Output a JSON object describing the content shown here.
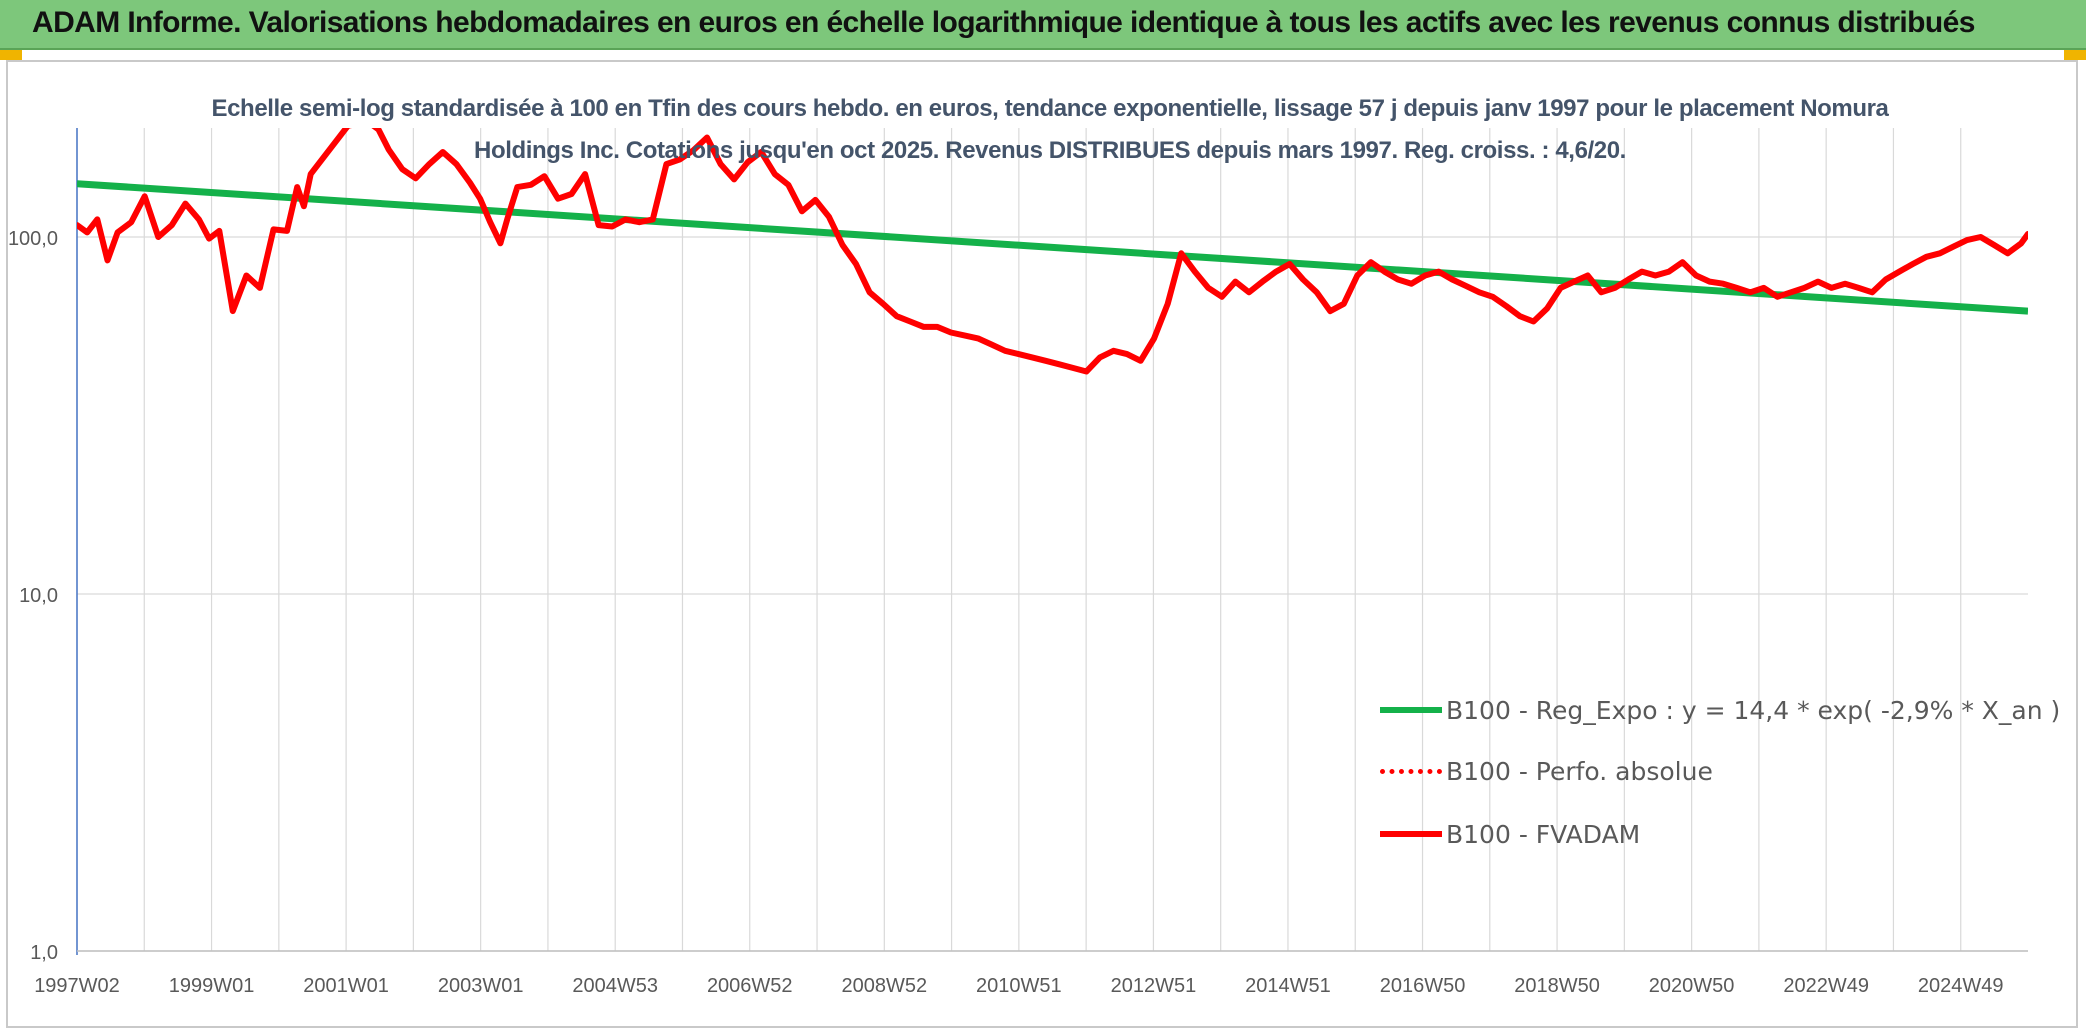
{
  "header": {
    "title": "ADAM Informe. Valorisations hebdomadaires en euros en échelle logarithmique identique à tous les actifs avec les revenus connus distribués"
  },
  "chart_data": {
    "type": "line",
    "title": "Echelle semi-log standardisée à 100 en Tfin des cours hebdo. en euros, tendance exponentielle, lissage 57 j depuis janv 1997 pour le placement Nomura Holdings Inc. Cotations jusqu'en oct 2025. Revenus DISTRIBUES depuis mars 1997. Reg. croiss. : 4,6/20.",
    "xlabel": "",
    "ylabel": "",
    "y_scale": "log",
    "ylim": [
      1,
      220
    ],
    "y_ticks": [
      "1,0",
      "10,0",
      "100,0"
    ],
    "x_tick_labels": [
      "1997W02",
      "1999W01",
      "2001W01",
      "2003W01",
      "2004W53",
      "2006W52",
      "2008W52",
      "2010W51",
      "2012W51",
      "2014W51",
      "2016W50",
      "2018W50",
      "2020W50",
      "2022W49",
      "2024W49"
    ],
    "xlim": [
      1997.0,
      2025.8
    ],
    "grid": "vertical",
    "legend_position": "right",
    "series": [
      {
        "name": "B100 - Reg_Expo : y = 14,4 * exp( -2,9% *  X_an )",
        "color": "#14b14a",
        "style": "solid",
        "x": [
          1997.0,
          2025.8
        ],
        "y": [
          141,
          62
        ]
      },
      {
        "name": "B100 - Perfo. absolue",
        "color": "#ff0000",
        "style": "dotted",
        "x": [],
        "y": []
      },
      {
        "name": "B100 - FVADAM",
        "color": "#ff0000",
        "style": "solid",
        "x": [
          1997.0,
          1997.15,
          1997.3,
          1997.45,
          1997.6,
          1997.8,
          1998.0,
          1998.2,
          1998.4,
          1998.6,
          1998.8,
          1998.95,
          1999.1,
          1999.3,
          1999.5,
          1999.7,
          1999.9,
          2000.1,
          2000.25,
          2000.35,
          2000.45,
          2001.0,
          2001.3,
          2001.45,
          2001.6,
          2001.8,
          2002.0,
          2002.2,
          2002.4,
          2002.6,
          2002.8,
          2002.95,
          2003.1,
          2003.25,
          2003.35,
          2003.5,
          2003.7,
          2003.9,
          2004.1,
          2004.3,
          2004.5,
          2004.7,
          2004.9,
          2005.1,
          2005.3,
          2005.5,
          2005.7,
          2005.9,
          2006.1,
          2006.3,
          2006.5,
          2006.7,
          2006.9,
          2007.1,
          2007.3,
          2007.5,
          2007.7,
          2007.9,
          2008.1,
          2008.3,
          2008.5,
          2008.7,
          2008.9,
          2009.1,
          2009.3,
          2009.5,
          2009.7,
          2009.9,
          2010.1,
          2010.3,
          2010.5,
          2010.7,
          2010.9,
          2011.1,
          2011.3,
          2011.5,
          2011.7,
          2011.9,
          2012.1,
          2012.3,
          2012.5,
          2012.7,
          2012.9,
          2013.1,
          2013.3,
          2013.5,
          2013.7,
          2013.9,
          2014.1,
          2014.3,
          2014.5,
          2014.7,
          2014.9,
          2015.1,
          2015.3,
          2015.5,
          2015.7,
          2015.9,
          2016.1,
          2016.3,
          2016.5,
          2016.7,
          2016.9,
          2017.1,
          2017.3,
          2017.5,
          2017.7,
          2017.9,
          2018.1,
          2018.3,
          2018.5,
          2018.7,
          2018.9,
          2019.1,
          2019.3,
          2019.5,
          2019.7,
          2019.9,
          2020.1,
          2020.3,
          2020.5,
          2020.7,
          2020.9,
          2021.1,
          2021.3,
          2021.5,
          2021.7,
          2021.9,
          2022.1,
          2022.3,
          2022.5,
          2022.7,
          2022.9,
          2023.1,
          2023.3,
          2023.5,
          2023.7,
          2023.9,
          2024.1,
          2024.3,
          2024.5,
          2024.7,
          2024.9,
          2025.1,
          2025.3,
          2025.5,
          2025.7,
          2025.8
        ],
        "y": [
          108,
          103,
          112,
          86,
          103,
          110,
          130,
          100,
          108,
          124,
          112,
          99,
          104,
          62,
          78,
          72,
          105,
          104,
          138,
          122,
          150,
          205,
          210,
          200,
          176,
          155,
          146,
          160,
          173,
          160,
          142,
          128,
          110,
          96,
          112,
          138,
          140,
          148,
          128,
          132,
          150,
          108,
          107,
          112,
          110,
          112,
          160,
          165,
          175,
          190,
          160,
          145,
          162,
          173,
          150,
          140,
          118,
          127,
          114,
          95,
          84,
          70,
          65,
          60,
          58,
          56,
          56,
          54,
          53,
          52,
          50,
          48,
          47,
          46,
          45,
          44,
          43,
          42,
          46,
          48,
          47,
          45,
          52,
          65,
          90,
          80,
          72,
          68,
          75,
          70,
          75,
          80,
          84,
          76,
          70,
          62,
          65,
          78,
          85,
          80,
          76,
          74,
          78,
          80,
          76,
          73,
          70,
          68,
          64,
          60,
          58,
          63,
          72,
          75,
          78,
          70,
          72,
          76,
          80,
          78,
          80,
          85,
          78,
          75,
          74,
          72,
          70,
          72,
          68,
          70,
          72,
          75,
          72,
          74,
          72,
          70,
          76,
          80,
          84,
          88,
          90,
          94,
          98,
          100,
          95,
          90,
          96,
          102
        ]
      }
    ]
  }
}
